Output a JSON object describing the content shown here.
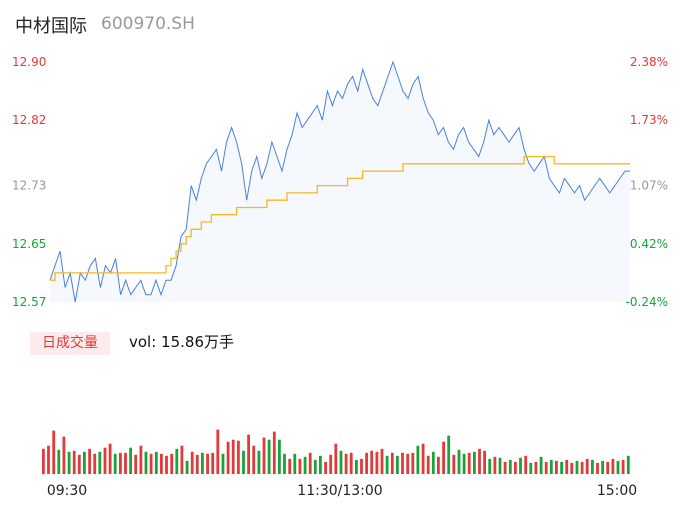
{
  "header": {
    "name": "中材国际",
    "code": "600970.SH"
  },
  "volume_panel": {
    "tab_label": "日成交量",
    "vol_text": "vol: 15.86万手"
  },
  "colors": {
    "up": "#e23a3a",
    "down": "#1aa33a",
    "neutral": "#999999",
    "price_line": "#4a7fe0",
    "avg_line": "#f5b921",
    "area_fill": "#f5f8fd"
  },
  "chart_data": [
    {
      "type": "line",
      "y_left_ticks": [
        "12.90",
        "12.82",
        "12.73",
        "12.65",
        "12.57"
      ],
      "y_left_colors": [
        "up",
        "up",
        "neutral",
        "down",
        "down"
      ],
      "y_right_ticks": [
        "2.38%",
        "1.73%",
        "1.07%",
        "0.42%",
        "-0.24%"
      ],
      "y_right_colors": [
        "up",
        "up",
        "neutral",
        "down",
        "down"
      ],
      "ylim": [
        12.57,
        12.9
      ],
      "x_ticks": [
        "09:30",
        "11:30/13:00",
        "15:00"
      ],
      "series": [
        {
          "role": "price",
          "values": [
            12.6,
            12.62,
            12.64,
            12.59,
            12.61,
            12.57,
            12.61,
            12.6,
            12.62,
            12.63,
            12.59,
            12.62,
            12.61,
            12.63,
            12.58,
            12.6,
            12.58,
            12.59,
            12.6,
            12.58,
            12.58,
            12.6,
            12.58,
            12.6,
            12.6,
            12.62,
            12.66,
            12.67,
            12.73,
            12.71,
            12.74,
            12.76,
            12.77,
            12.78,
            12.75,
            12.79,
            12.81,
            12.79,
            12.76,
            12.71,
            12.75,
            12.77,
            12.74,
            12.76,
            12.79,
            12.77,
            12.75,
            12.78,
            12.8,
            12.83,
            12.81,
            12.82,
            12.83,
            12.84,
            12.82,
            12.86,
            12.84,
            12.86,
            12.85,
            12.87,
            12.88,
            12.86,
            12.89,
            12.87,
            12.85,
            12.84,
            12.86,
            12.88,
            12.9,
            12.88,
            12.86,
            12.85,
            12.87,
            12.88,
            12.85,
            12.83,
            12.82,
            12.8,
            12.81,
            12.79,
            12.78,
            12.8,
            12.81,
            12.79,
            12.78,
            12.77,
            12.79,
            12.82,
            12.8,
            12.81,
            12.8,
            12.79,
            12.8,
            12.81,
            12.78,
            12.76,
            12.75,
            12.76,
            12.77,
            12.74,
            12.73,
            12.72,
            12.74,
            12.73,
            12.72,
            12.73,
            12.71,
            12.72,
            12.73,
            12.74,
            12.73,
            12.72,
            12.73,
            12.74,
            12.75,
            12.75
          ]
        },
        {
          "role": "average",
          "values": [
            12.6,
            12.61,
            12.61,
            12.61,
            12.61,
            12.61,
            12.61,
            12.61,
            12.61,
            12.61,
            12.61,
            12.61,
            12.61,
            12.61,
            12.61,
            12.61,
            12.61,
            12.61,
            12.61,
            12.61,
            12.61,
            12.61,
            12.61,
            12.62,
            12.63,
            12.64,
            12.65,
            12.66,
            12.67,
            12.67,
            12.68,
            12.68,
            12.69,
            12.69,
            12.69,
            12.69,
            12.69,
            12.7,
            12.7,
            12.7,
            12.7,
            12.7,
            12.7,
            12.71,
            12.71,
            12.71,
            12.71,
            12.72,
            12.72,
            12.72,
            12.72,
            12.72,
            12.72,
            12.73,
            12.73,
            12.73,
            12.73,
            12.73,
            12.73,
            12.74,
            12.74,
            12.74,
            12.75,
            12.75,
            12.75,
            12.75,
            12.75,
            12.75,
            12.75,
            12.75,
            12.76,
            12.76,
            12.76,
            12.76,
            12.76,
            12.76,
            12.76,
            12.76,
            12.76,
            12.76,
            12.76,
            12.76,
            12.76,
            12.76,
            12.76,
            12.76,
            12.76,
            12.76,
            12.76,
            12.76,
            12.76,
            12.76,
            12.76,
            12.76,
            12.77,
            12.77,
            12.77,
            12.77,
            12.77,
            12.77,
            12.76,
            12.76,
            12.76,
            12.76,
            12.76,
            12.76,
            12.76,
            12.76,
            12.76,
            12.76,
            12.76,
            12.76,
            12.76,
            12.76,
            12.76,
            12.76
          ]
        }
      ]
    },
    {
      "type": "bar",
      "role": "volume",
      "ylim": [
        0,
        100
      ],
      "values": [
        25,
        28,
        43,
        24,
        37,
        22,
        23,
        19,
        22,
        25,
        20,
        22,
        26,
        30,
        20,
        21,
        21,
        26,
        19,
        28,
        22,
        20,
        22,
        20,
        18,
        20,
        25,
        28,
        13,
        22,
        19,
        21,
        20,
        21,
        44,
        20,
        32,
        34,
        33,
        23,
        39,
        28,
        23,
        36,
        34,
        42,
        34,
        20,
        15,
        20,
        15,
        17,
        21,
        14,
        18,
        12,
        19,
        30,
        23,
        20,
        21,
        14,
        15,
        21,
        23,
        22,
        25,
        18,
        21,
        18,
        21,
        20,
        21,
        28,
        30,
        18,
        22,
        17,
        32,
        38,
        19,
        24,
        20,
        21,
        22,
        25,
        23,
        15,
        17,
        16,
        12,
        14,
        12,
        16,
        18,
        11,
        12,
        17,
        12,
        14,
        13,
        12,
        14,
        11,
        13,
        12,
        15,
        14,
        11,
        13,
        12,
        15,
        13,
        14,
        18
      ],
      "colors": [
        "up",
        "up",
        "up",
        "down",
        "up",
        "down",
        "up",
        "up",
        "down",
        "up",
        "up",
        "down",
        "up",
        "up",
        "down",
        "up",
        "up",
        "down",
        "up",
        "up",
        "down",
        "up",
        "down",
        "up",
        "up",
        "up",
        "down",
        "up",
        "down",
        "up",
        "up",
        "down",
        "up",
        "up",
        "up",
        "down",
        "up",
        "up",
        "up",
        "down",
        "up",
        "up",
        "down",
        "up",
        "down",
        "up",
        "down",
        "down",
        "up",
        "down",
        "up",
        "down",
        "up",
        "down",
        "down",
        "up",
        "up",
        "up",
        "down",
        "up",
        "up",
        "down",
        "up",
        "up",
        "up",
        "up",
        "up",
        "down",
        "up",
        "down",
        "up",
        "up",
        "up",
        "down",
        "up",
        "up",
        "down",
        "up",
        "up",
        "down",
        "up",
        "down",
        "down",
        "up",
        "down",
        "up",
        "up",
        "down",
        "up",
        "down",
        "up",
        "down",
        "up",
        "down",
        "up",
        "down",
        "up",
        "down",
        "up",
        "down",
        "up",
        "down",
        "up",
        "up",
        "down",
        "up",
        "up",
        "down",
        "up",
        "down",
        "up",
        "up",
        "down",
        "up",
        "down"
      ]
    }
  ]
}
